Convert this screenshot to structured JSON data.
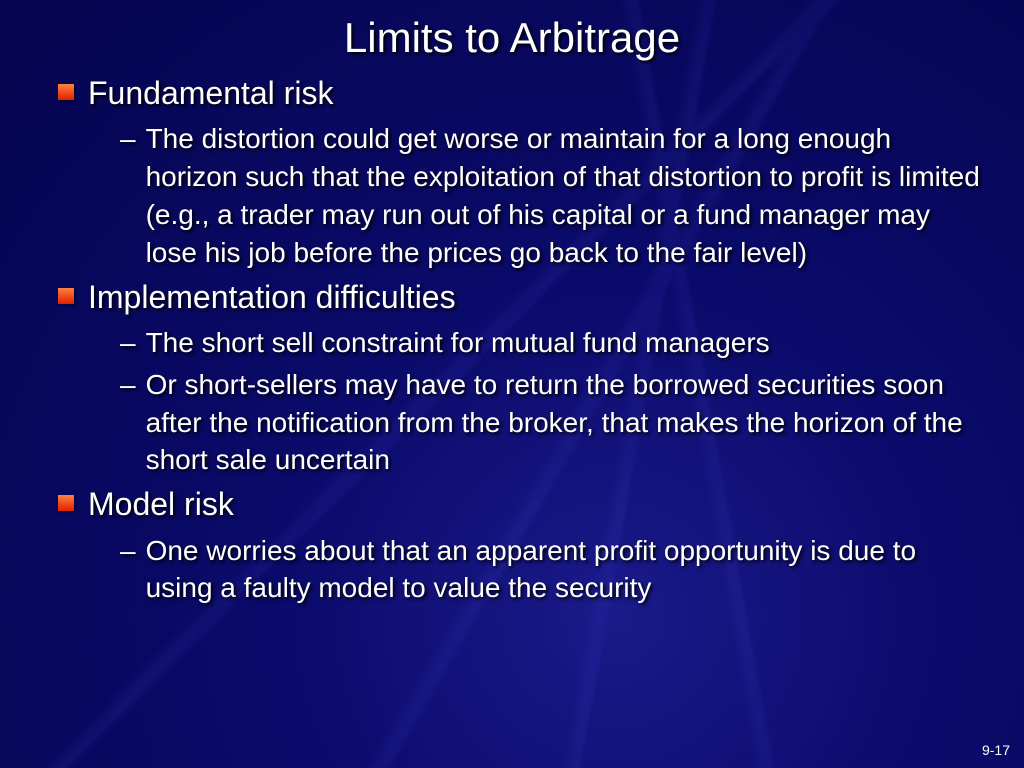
{
  "slide": {
    "title": "Limits to Arbitrage",
    "page_number": "9-17",
    "bullets": [
      {
        "label": "Fundamental risk",
        "subs": [
          "The distortion could get worse or maintain for a long enough horizon such that the exploitation of that distortion to profit is limited (e.g., a trader may run out of his capital or a fund manager may lose his job before the prices go back to the fair level)"
        ]
      },
      {
        "label": "Implementation difficulties",
        "subs": [
          "The short sell constraint for mutual fund managers",
          "Or short-sellers may have to return the borrowed securities soon after the notification from the broker, that makes the horizon of the short sale uncertain"
        ]
      },
      {
        "label": "Model risk",
        "subs": [
          "One worries about that an apparent profit opportunity is due to using a faulty model to value the security"
        ]
      }
    ]
  },
  "style": {
    "background_gradient": [
      "#1a1a8a",
      "#0a0a6a",
      "#050550"
    ],
    "text_color": "#ffffff",
    "bullet_marker_gradient": [
      "#ff8040",
      "#e02000"
    ],
    "title_fontsize": 42,
    "level1_fontsize": 32,
    "level2_fontsize": 28,
    "text_shadow": "2px 2px 3px #000"
  }
}
